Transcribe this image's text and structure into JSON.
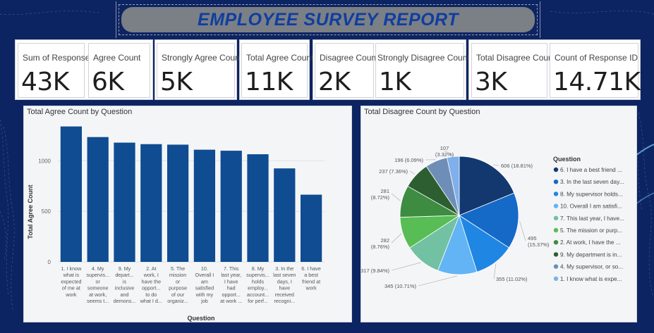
{
  "title": "EMPLOYEE SURVEY REPORT",
  "kpis": [
    {
      "label": "Sum of Response",
      "value": "43K"
    },
    {
      "label": "Agree Count",
      "value": "6K"
    },
    {
      "label": "Strongly Agree Count",
      "value": "5K"
    },
    {
      "label": "Total Agree Count",
      "value": "11K"
    },
    {
      "label": "Disagree Count",
      "value": "2K"
    },
    {
      "label": "Strongly Disagree Count",
      "value": "1K"
    },
    {
      "label": "Total Disagree Count",
      "value": "3K"
    },
    {
      "label": "Count of Response ID",
      "value": "14.71K"
    }
  ],
  "colors": {
    "background": "#0d2463",
    "bar": "#0f4c92",
    "title_text": "#0f3ea0",
    "title_bar": "#7b7f86"
  },
  "chart_data": [
    {
      "type": "bar",
      "title": "Total Agree Count by Question",
      "xlabel": "Question",
      "ylabel": "Total Agree Count",
      "ylim": [
        0,
        1400
      ],
      "yticks": [
        0,
        500,
        1000
      ],
      "grid": true,
      "categories": [
        [
          "1. I know",
          "what is",
          "expected",
          "of me at",
          "work"
        ],
        [
          "4. My",
          "supervis...",
          "or",
          "someone",
          "at work,",
          "seems t..."
        ],
        [
          "9. My",
          "depart...",
          "is",
          "inclusive",
          "and",
          "demons..."
        ],
        [
          "2. At",
          "work, I",
          "have the",
          "opport...",
          "to do",
          "what I d..."
        ],
        [
          "5. The",
          "mission",
          "or",
          "purpose",
          "of our",
          "organiz..."
        ],
        [
          "10.",
          "Overall I",
          "am",
          "satisfied",
          "with my",
          "job"
        ],
        [
          "7. This",
          "last year,",
          "I have",
          "had",
          "opport...",
          "at work ..."
        ],
        [
          "8. My",
          "supervis...",
          "holds",
          "employ...",
          "account...",
          "for perf..."
        ],
        [
          "3. In the",
          "last seven",
          "days, I",
          "have",
          "received",
          "recogni..."
        ],
        [
          "6. I have",
          "a best",
          "friend at",
          "work"
        ]
      ],
      "values": [
        1340,
        1235,
        1180,
        1165,
        1160,
        1110,
        1100,
        1065,
        925,
        665
      ]
    },
    {
      "type": "pie",
      "title": "Total Disagree Count by Question",
      "legend_title": "Question",
      "legend_position": "right",
      "slices": [
        {
          "legend": "6. I have a best friend ...",
          "label": "606 (18.81%)",
          "value": 606,
          "color": "#12386f"
        },
        {
          "legend": "3. In the last seven day...",
          "label": "495 (15.37%)",
          "value": 495,
          "color": "#1569c7"
        },
        {
          "legend": "8. My supervisor holds...",
          "label": "355 (11.02%)",
          "value": 355,
          "color": "#1f86e4"
        },
        {
          "legend": "10. Overall I am satisfi...",
          "label": "345 (10.71%)",
          "value": 345,
          "color": "#62b4f4"
        },
        {
          "legend": "7. This last year, I have...",
          "label": "317 (9.84%)",
          "value": 317,
          "color": "#71c1a2"
        },
        {
          "legend": "5. The mission or purp...",
          "label": "282 (8.76%)",
          "value": 282,
          "color": "#57bd54"
        },
        {
          "legend": "2. At work, I have the ...",
          "label": "281 (8.72%)",
          "value": 281,
          "color": "#3d8c41"
        },
        {
          "legend": "9. My department is in...",
          "label": "237 (7.36%)",
          "value": 237,
          "color": "#2d5e31"
        },
        {
          "legend": "4. My supervisor, or so...",
          "label": "196 (6.09%)",
          "value": 196,
          "color": "#6e8eb7"
        },
        {
          "legend": "1. I know what is expe...",
          "label": "107 (3.32%)",
          "value": 107,
          "color": "#7fb0ec"
        }
      ]
    }
  ]
}
